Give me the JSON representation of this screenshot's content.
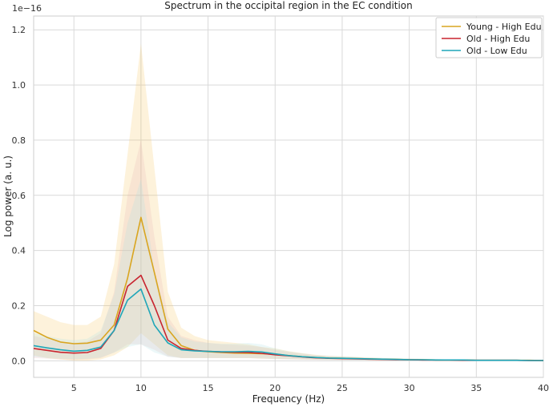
{
  "chart_data": {
    "type": "line",
    "title": "Spectrum in the occipital region in the EC condition",
    "xlabel": "Frequency (Hz)",
    "ylabel": "Log power (a. u.)",
    "y_offset_text": "1e−16",
    "xlim": [
      2,
      40
    ],
    "ylim": [
      -0.06,
      1.25
    ],
    "xticks": [
      5,
      10,
      15,
      20,
      25,
      30,
      35,
      40
    ],
    "yticks": [
      0.0,
      0.2,
      0.4,
      0.6,
      0.8,
      1.0,
      1.2
    ],
    "ytick_labels": [
      "0.0",
      "0.2",
      "0.4",
      "0.6",
      "0.8",
      "1.0",
      "1.2"
    ],
    "grid": true,
    "legend_position": "upper-right",
    "x": [
      2,
      3,
      4,
      5,
      6,
      7,
      8,
      9,
      10,
      11,
      12,
      13,
      14,
      15,
      16,
      17,
      18,
      19,
      20,
      21,
      22,
      23,
      24,
      25,
      26,
      27,
      28,
      29,
      30,
      31,
      32,
      33,
      34,
      35,
      36,
      37,
      38,
      39,
      40
    ],
    "series": [
      {
        "name": "Young - High Edu",
        "color": "#d9a520",
        "band_color": "#f7c45a",
        "values": [
          0.11,
          0.085,
          0.068,
          0.062,
          0.064,
          0.075,
          0.13,
          0.3,
          0.52,
          0.32,
          0.115,
          0.055,
          0.038,
          0.033,
          0.03,
          0.028,
          0.027,
          0.026,
          0.024,
          0.019,
          0.015,
          0.012,
          0.01,
          0.009,
          0.008,
          0.007,
          0.006,
          0.005,
          0.004,
          0.004,
          0.003,
          0.003,
          0.003,
          0.002,
          0.002,
          0.002,
          0.002,
          0.002,
          0.001
        ],
        "lower": [
          0.02,
          0.01,
          0.005,
          0.0,
          0.0,
          0.005,
          0.02,
          0.05,
          0.1,
          0.06,
          0.02,
          0.01,
          0.01,
          0.01,
          0.01,
          0.01,
          0.01,
          0.008,
          0.007,
          0.006,
          0.005,
          0.004,
          0.003,
          0.003,
          0.003,
          0.002,
          0.002,
          0.002,
          0.001,
          0.001,
          0.001,
          0.001,
          0.001,
          0.001,
          0.001,
          0.001,
          0.0,
          0.0,
          0.0
        ],
        "upper": [
          0.18,
          0.16,
          0.14,
          0.13,
          0.13,
          0.16,
          0.35,
          0.75,
          1.15,
          0.7,
          0.25,
          0.12,
          0.09,
          0.075,
          0.07,
          0.065,
          0.06,
          0.05,
          0.045,
          0.035,
          0.028,
          0.022,
          0.018,
          0.016,
          0.014,
          0.012,
          0.01,
          0.009,
          0.008,
          0.007,
          0.006,
          0.005,
          0.005,
          0.004,
          0.004,
          0.003,
          0.003,
          0.003,
          0.003
        ]
      },
      {
        "name": "Old - High Edu",
        "color": "#c8242f",
        "band_color": "#e6b0b0",
        "values": [
          0.045,
          0.038,
          0.031,
          0.028,
          0.03,
          0.045,
          0.11,
          0.27,
          0.31,
          0.2,
          0.075,
          0.045,
          0.038,
          0.034,
          0.032,
          0.031,
          0.03,
          0.027,
          0.022,
          0.018,
          0.014,
          0.011,
          0.009,
          0.008,
          0.007,
          0.006,
          0.005,
          0.004,
          0.004,
          0.003,
          0.003,
          0.003,
          0.002,
          0.002,
          0.002,
          0.002,
          0.002,
          0.001,
          0.001
        ],
        "lower": [
          0.01,
          0.008,
          0.005,
          0.003,
          0.005,
          0.01,
          0.03,
          0.06,
          0.06,
          0.04,
          0.015,
          0.01,
          0.01,
          0.01,
          0.01,
          0.01,
          0.01,
          0.008,
          0.006,
          0.005,
          0.004,
          0.003,
          0.003,
          0.002,
          0.002,
          0.002,
          0.001,
          0.001,
          0.001,
          0.001,
          0.001,
          0.001,
          0.0,
          0.0,
          0.0,
          0.0,
          0.0,
          0.0,
          0.0
        ],
        "upper": [
          0.09,
          0.08,
          0.07,
          0.065,
          0.07,
          0.1,
          0.25,
          0.6,
          0.8,
          0.45,
          0.16,
          0.09,
          0.075,
          0.065,
          0.06,
          0.058,
          0.055,
          0.05,
          0.04,
          0.032,
          0.026,
          0.02,
          0.017,
          0.015,
          0.013,
          0.011,
          0.01,
          0.008,
          0.007,
          0.006,
          0.006,
          0.005,
          0.004,
          0.004,
          0.004,
          0.003,
          0.003,
          0.003,
          0.003
        ]
      },
      {
        "name": "Old - Low Edu",
        "color": "#1fa6b8",
        "band_color": "#a9dde4",
        "values": [
          0.055,
          0.047,
          0.04,
          0.035,
          0.038,
          0.05,
          0.11,
          0.22,
          0.26,
          0.13,
          0.065,
          0.04,
          0.036,
          0.034,
          0.033,
          0.033,
          0.034,
          0.032,
          0.025,
          0.019,
          0.015,
          0.012,
          0.01,
          0.009,
          0.008,
          0.007,
          0.006,
          0.005,
          0.004,
          0.004,
          0.003,
          0.003,
          0.003,
          0.002,
          0.002,
          0.002,
          0.002,
          0.001,
          0.001
        ],
        "lower": [
          0.015,
          0.01,
          0.008,
          0.006,
          0.007,
          0.012,
          0.03,
          0.05,
          0.06,
          0.03,
          0.015,
          0.01,
          0.01,
          0.01,
          0.01,
          0.01,
          0.01,
          0.009,
          0.007,
          0.006,
          0.005,
          0.004,
          0.003,
          0.003,
          0.002,
          0.002,
          0.002,
          0.001,
          0.001,
          0.001,
          0.001,
          0.001,
          0.001,
          0.0,
          0.0,
          0.0,
          0.0,
          0.0,
          0.0
        ],
        "upper": [
          0.1,
          0.09,
          0.08,
          0.075,
          0.08,
          0.11,
          0.24,
          0.5,
          0.66,
          0.33,
          0.14,
          0.085,
          0.07,
          0.065,
          0.062,
          0.062,
          0.065,
          0.06,
          0.045,
          0.034,
          0.027,
          0.021,
          0.018,
          0.016,
          0.014,
          0.012,
          0.01,
          0.009,
          0.008,
          0.007,
          0.006,
          0.005,
          0.005,
          0.004,
          0.004,
          0.003,
          0.003,
          0.003,
          0.003
        ]
      }
    ]
  }
}
